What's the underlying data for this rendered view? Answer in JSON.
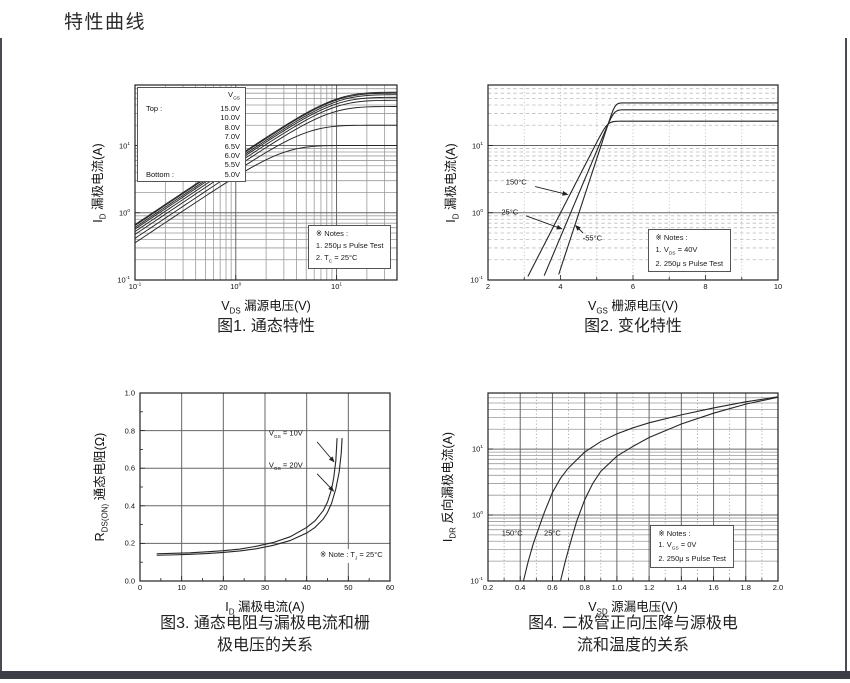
{
  "page": {
    "title": "特性曲线"
  },
  "colors": {
    "curve": "#262626",
    "grid_major": "#666666",
    "plot_border": "#222222",
    "ink": "#1a1a1a",
    "frame_bar": "#3d3d45"
  },
  "chart_data": [
    {
      "type": "line",
      "caption_lines": [
        "图1. 通态特性"
      ],
      "xlabel": "V~DS~ 漏源电压(V)",
      "ylabel": "I~D~ 漏极电流(A)",
      "x_axis": {
        "scale": "log",
        "min": 0.1,
        "max": 39.8,
        "tick_exps": [
          -1,
          0,
          1
        ]
      },
      "y_axis": {
        "scale": "log",
        "min": 0.1,
        "max": 79.4,
        "tick_exps": [
          -1,
          0,
          1
        ]
      },
      "grid_style": {
        "v_major": "solid",
        "v_minor": "solid",
        "h_major": "solid",
        "h_minor": "solid"
      },
      "legend": {
        "header": "V~GS~",
        "rows": [
          [
            "Top :",
            "15.0V"
          ],
          [
            "",
            "10.0V"
          ],
          [
            "",
            "8.0V"
          ],
          [
            "",
            "7.0V"
          ],
          [
            "",
            "6.5V"
          ],
          [
            "",
            "6.0V"
          ],
          [
            "",
            "5.5V"
          ],
          [
            "Bottom :",
            "5.0V"
          ]
        ]
      },
      "series": [
        {
          "label": "VGS 15.0V",
          "model": "ohmic_sat",
          "r_ohm": 0.15,
          "isat_a": 62
        },
        {
          "label": "VGS 10.0V",
          "model": "ohmic_sat",
          "r_ohm": 0.155,
          "isat_a": 60
        },
        {
          "label": "VGS 8.0V",
          "model": "ohmic_sat",
          "r_ohm": 0.165,
          "isat_a": 57
        },
        {
          "label": "VGS 7.0V",
          "model": "ohmic_sat",
          "r_ohm": 0.175,
          "isat_a": 52
        },
        {
          "label": "VGS 6.5V",
          "model": "ohmic_sat",
          "r_ohm": 0.19,
          "isat_a": 47
        },
        {
          "label": "VGS 6.0V",
          "model": "ohmic_sat",
          "r_ohm": 0.21,
          "isat_a": 38
        },
        {
          "label": "VGS 5.5V",
          "model": "ohmic_sat",
          "r_ohm": 0.24,
          "isat_a": 20
        },
        {
          "label": "VGS 5.0V",
          "model": "ohmic_sat",
          "r_ohm": 0.28,
          "isat_a": 10
        }
      ],
      "notes": {
        "fx": 0.66,
        "fy": 0.72,
        "boxed": true,
        "lines": [
          "※ Notes :",
          "1. 250μ s Pulse Test",
          "2. T~C~ = 25°C"
        ]
      }
    },
    {
      "type": "line",
      "caption_lines": [
        "图2. 变化特性"
      ],
      "xlabel": "V~GS~ 栅源电压(V)",
      "ylabel": "I~D~ 漏极电流(A)",
      "x_axis": {
        "scale": "linear",
        "min": 2,
        "max": 10,
        "tick_vals": [
          2,
          4,
          6,
          8,
          10
        ],
        "tick_labels": [
          "2",
          "4",
          "6",
          "8",
          "10"
        ],
        "minor_vals": [
          3,
          5,
          7,
          9
        ],
        "grid_minor": [
          3,
          4,
          5,
          6,
          7,
          8,
          9
        ]
      },
      "y_axis": {
        "scale": "log",
        "min": 0.1,
        "max": 79.4,
        "tick_exps": [
          -1,
          0,
          1
        ]
      },
      "grid_style": {
        "v_minor": "dotted",
        "h_major": "solid",
        "h_minor": "dashed"
      },
      "series": [
        {
          "label": "150°C",
          "model": "knee_log",
          "v_th": 3.05,
          "slope_dec_per_v": 1.05,
          "isat_a": 23
        },
        {
          "label": "25°C",
          "model": "knee_log",
          "v_th": 3.5,
          "slope_dec_per_v": 1.28,
          "isat_a": 34
        },
        {
          "label": "-55°C",
          "model": "knee_log",
          "v_th": 3.9,
          "slope_dec_per_v": 1.64,
          "isat_a": 43
        }
      ],
      "annotations": [
        {
          "text": "150°C",
          "x": 2.78,
          "y": 2.9,
          "arrow": [
            3.3,
            2.45,
            4.22,
            1.85
          ]
        },
        {
          "text": "25°C",
          "x": 2.6,
          "y": 1.02,
          "arrow": [
            3.05,
            0.9,
            4.06,
            0.57
          ]
        },
        {
          "text": "-55°C",
          "x": 4.88,
          "y": 0.42,
          "arrow": [
            4.62,
            0.5,
            4.4,
            0.66
          ]
        }
      ],
      "notes": {
        "fx": 0.55,
        "fy": 0.74,
        "boxed": true,
        "lines": [
          "※ Notes :",
          "1. V~DS~ = 40V",
          "2. 250μ s Pulse Test"
        ]
      }
    },
    {
      "type": "line",
      "caption_lines": [
        "图3. 通态电阻与漏极电流和栅",
        "极电压的关系"
      ],
      "xlabel": "I~D~ 漏极电流(A)",
      "ylabel": "R~DS(ON)~ 通态电阻(Ω)",
      "x_axis": {
        "scale": "linear",
        "min": 0,
        "max": 60,
        "tick_vals": [
          0,
          10,
          20,
          30,
          40,
          50,
          60
        ],
        "tick_labels": [
          "0",
          "10",
          "20",
          "30",
          "40",
          "50",
          "60"
        ],
        "minor_vals": [
          5,
          15,
          25,
          35,
          45,
          55
        ],
        "grid_major": [
          10,
          20,
          30,
          40,
          50
        ]
      },
      "y_axis": {
        "scale": "linear",
        "min": 0,
        "max": 1.0,
        "tick_vals": [
          0,
          0.2,
          0.4,
          0.6,
          0.8,
          1.0
        ],
        "tick_labels": [
          "0.0",
          "0.2",
          "0.4",
          "0.6",
          "0.8",
          "1.0"
        ],
        "minor_vals": [
          0.1,
          0.3,
          0.5,
          0.7,
          0.9
        ],
        "grid_major": [
          0.2,
          0.4,
          0.6,
          0.8
        ]
      },
      "grid_style": {
        "v_major": "solid",
        "h_major": "solid"
      },
      "series": [
        {
          "label": "VGS = 10V",
          "model": "points",
          "points": [
            [
              4,
              0.145
            ],
            [
              8,
              0.147
            ],
            [
              12,
              0.15
            ],
            [
              16,
              0.155
            ],
            [
              20,
              0.161
            ],
            [
              24,
              0.17
            ],
            [
              28,
              0.185
            ],
            [
              32,
              0.205
            ],
            [
              36,
              0.235
            ],
            [
              40,
              0.285
            ],
            [
              42,
              0.32
            ],
            [
              44,
              0.375
            ],
            [
              45,
              0.42
            ],
            [
              46,
              0.49
            ],
            [
              46.5,
              0.55
            ],
            [
              47,
              0.64
            ],
            [
              47.3,
              0.76
            ]
          ]
        },
        {
          "label": "VGS = 20V",
          "model": "points",
          "points": [
            [
              4,
              0.137
            ],
            [
              8,
              0.139
            ],
            [
              12,
              0.142
            ],
            [
              16,
              0.146
            ],
            [
              20,
              0.152
            ],
            [
              24,
              0.16
            ],
            [
              28,
              0.172
            ],
            [
              32,
              0.19
            ],
            [
              36,
              0.215
            ],
            [
              40,
              0.255
            ],
            [
              42,
              0.285
            ],
            [
              44,
              0.33
            ],
            [
              45,
              0.365
            ],
            [
              46,
              0.415
            ],
            [
              47,
              0.49
            ],
            [
              47.8,
              0.58
            ],
            [
              48.3,
              0.68
            ],
            [
              48.5,
              0.76
            ]
          ]
        }
      ],
      "annotations": [
        {
          "text": "V~GS~ = 10V",
          "x": 35,
          "y": 0.78,
          "arrow": [
            42.5,
            0.74,
            46.7,
            0.63
          ]
        },
        {
          "text": "V~GS~ = 20V",
          "x": 35,
          "y": 0.61,
          "arrow": [
            42.5,
            0.57,
            46.6,
            0.475
          ]
        }
      ],
      "notes": {
        "fx": 0.72,
        "fy": 0.83,
        "boxed": false,
        "lines": [
          "※ Note : T~J~ = 25°C"
        ]
      }
    },
    {
      "type": "line",
      "caption_lines": [
        "图4. 二极管正向压降与源极电",
        "流和温度的关系"
      ],
      "xlabel": "V~SD~ 源漏电压(V)",
      "ylabel": "I~DR~ 反向漏极电流(A)",
      "x_axis": {
        "scale": "linear",
        "min": 0.2,
        "max": 2.0,
        "tick_vals": [
          0.2,
          0.4,
          0.6,
          0.8,
          1.0,
          1.2,
          1.4,
          1.6,
          1.8,
          2.0
        ],
        "tick_labels": [
          "0.2",
          "0.4",
          "0.6",
          "0.8",
          "1.0",
          "1.2",
          "1.4",
          "1.6",
          "1.8",
          "2.0"
        ],
        "minor_vals": [
          0.3,
          0.5,
          0.7,
          0.9,
          1.1,
          1.3,
          1.5,
          1.7,
          1.9
        ],
        "grid_major": [
          0.4,
          0.6,
          0.8,
          1.0,
          1.2,
          1.4,
          1.6,
          1.8
        ],
        "grid_minor": [
          0.3,
          0.5,
          0.7,
          0.9,
          1.1,
          1.3,
          1.5,
          1.7,
          1.9
        ]
      },
      "y_axis": {
        "scale": "log",
        "min": 0.1,
        "max": 70.8,
        "tick_exps": [
          -1,
          0,
          1
        ]
      },
      "grid_style": {
        "v_major": "solid",
        "v_minor": "dotted",
        "h_major": "solid",
        "h_minor": "solid"
      },
      "series": [
        {
          "label": "150°C",
          "model": "points",
          "points": [
            [
              0.42,
              0.1
            ],
            [
              0.45,
              0.2
            ],
            [
              0.48,
              0.36
            ],
            [
              0.5,
              0.5
            ],
            [
              0.55,
              1.1
            ],
            [
              0.6,
              2.2
            ],
            [
              0.65,
              3.6
            ],
            [
              0.7,
              5.2
            ],
            [
              0.8,
              9
            ],
            [
              0.9,
              13
            ],
            [
              1.0,
              17
            ],
            [
              1.1,
              21
            ],
            [
              1.2,
              25
            ],
            [
              1.4,
              33
            ],
            [
              1.6,
              42
            ],
            [
              1.8,
              52
            ],
            [
              2.0,
              62
            ]
          ]
        },
        {
          "label": "25°C",
          "model": "points",
          "points": [
            [
              0.65,
              0.1
            ],
            [
              0.68,
              0.2
            ],
            [
              0.72,
              0.45
            ],
            [
              0.75,
              0.8
            ],
            [
              0.8,
              1.7
            ],
            [
              0.85,
              3.0
            ],
            [
              0.9,
              4.6
            ],
            [
              1.0,
              7.8
            ],
            [
              1.1,
              11
            ],
            [
              1.2,
              15
            ],
            [
              1.4,
              24
            ],
            [
              1.6,
              35
            ],
            [
              1.8,
              48
            ],
            [
              2.0,
              61
            ]
          ]
        }
      ],
      "annotations": [
        {
          "text": "150°C",
          "x": 0.35,
          "y": 0.53
        },
        {
          "text": "25°C",
          "x": 0.6,
          "y": 0.53
        }
      ],
      "notes": {
        "fx": 0.56,
        "fy": 0.7,
        "boxed": true,
        "lines": [
          "※ Notes :",
          "1. V~GS~ = 0V",
          "2. 250μ s Pulse Test"
        ]
      }
    }
  ]
}
